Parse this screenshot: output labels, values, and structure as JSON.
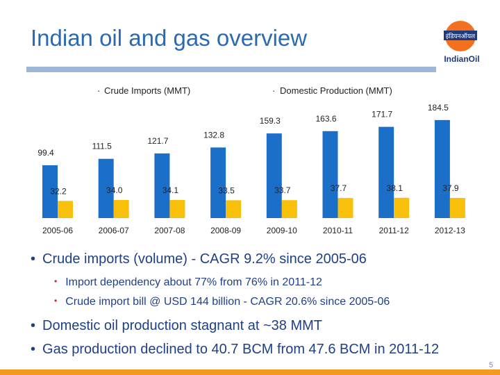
{
  "slide": {
    "title": "Indian oil and gas overview",
    "logo_text": "IndianOil",
    "slide_number": "5",
    "colors": {
      "title": "#2a6ab4",
      "series1": "#1b6fc9",
      "series2": "#f8c00a",
      "accent_bar": "#f39b1f",
      "rule": "#9fb6d6"
    },
    "icons": {
      "logo": "indianoil-logo-icon"
    }
  },
  "chart_data": {
    "type": "bar",
    "categories": [
      "2005-06",
      "2006-07",
      "2007-08",
      "2008-09",
      "2009-10",
      "2010-11",
      "2011-12",
      "2012-13"
    ],
    "series": [
      {
        "name": "Crude Imports (MMT)",
        "values": [
          99.4,
          111.5,
          121.7,
          132.8,
          159.3,
          163.6,
          171.7,
          184.5
        ],
        "labels": [
          "99.4",
          "111.5",
          "121.7",
          "132.8",
          "159.3",
          "163.6",
          "171.7",
          "184.5"
        ]
      },
      {
        "name": "Domestic Production (MMT)",
        "values": [
          32.2,
          34.0,
          34.1,
          33.5,
          33.7,
          37.7,
          38.1,
          37.9
        ],
        "labels": [
          "32.2",
          "34.0",
          "34.1",
          "33.5",
          "33.7",
          "37.7",
          "38.1",
          "37.9"
        ]
      }
    ],
    "legend_position": "top",
    "grid": false,
    "ylim": [
      0,
      200
    ]
  },
  "bullets": {
    "b1": "Crude imports (volume) - CAGR 9.2% since 2005-06",
    "b2": "Import dependency about 77% from 76% in 2011-12",
    "b3": "Crude import bill @ USD 144 billion - CAGR 20.6% since 2005-06",
    "b4": "Domestic oil production stagnant at ~38 MMT",
    "b5": "Gas production declined to 40.7 BCM from 47.6 BCM in 2011-12"
  }
}
